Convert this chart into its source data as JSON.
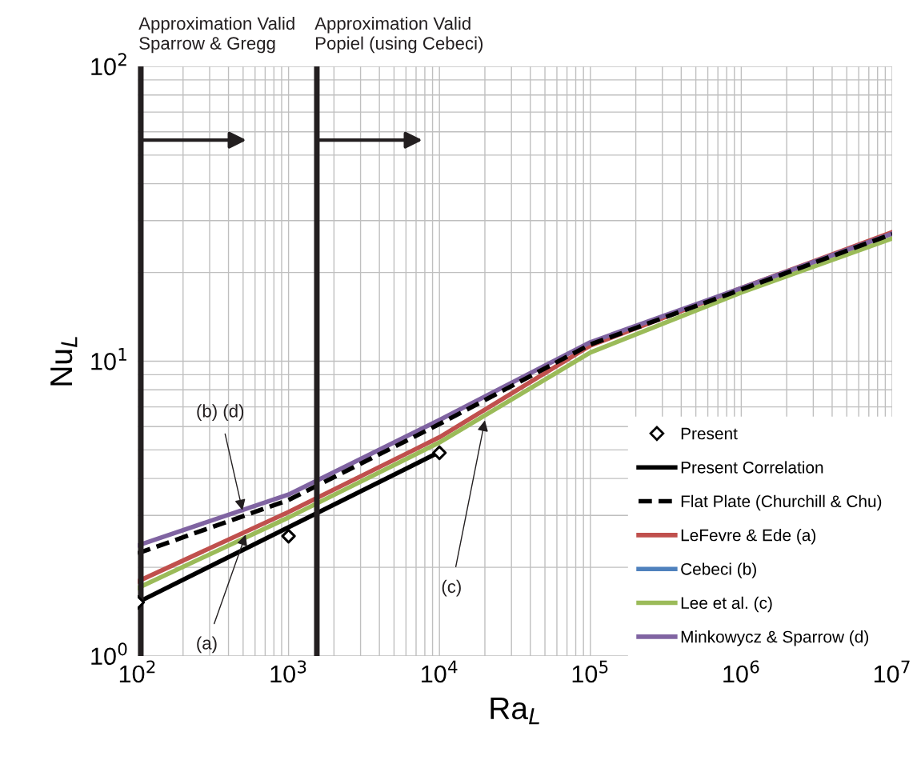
{
  "chart_data": {
    "type": "line",
    "xlabel": "Ra$_{L}$",
    "ylabel": "Nu$_{L}$",
    "log": "xy",
    "xlim": [
      100,
      10000000
    ],
    "ylim": [
      1,
      100
    ],
    "xticks": [
      {
        "value": 100,
        "label": "10$^{2}$"
      },
      {
        "value": 1000,
        "label": "10$^{3}$"
      },
      {
        "value": 10000,
        "label": "10$^{4}$"
      },
      {
        "value": 100000,
        "label": "10$^{5}$"
      },
      {
        "value": 1000000,
        "label": "10$^{6}$"
      },
      {
        "value": 10000000,
        "label": "10$^{7}$"
      }
    ],
    "yticks": [
      {
        "value": 1,
        "label": "10$^{0}$"
      },
      {
        "value": 10,
        "label": "10$^{1}$"
      },
      {
        "value": 100,
        "label": "10$^{2}$"
      }
    ],
    "grid": true,
    "legend": "bottom right",
    "x": [
      100,
      1000,
      10000,
      100000,
      1000000,
      10000000
    ],
    "series": [
      {
        "name": "Present",
        "type": "scatter",
        "marker": "diamond",
        "color": "#000000",
        "x": [
          100,
          1000,
          10000
        ],
        "values": [
          1.52,
          2.55,
          4.89
        ]
      },
      {
        "name": "Present Correlation",
        "color": "#000000",
        "line_style": "solid",
        "x": [
          100,
          10000
        ],
        "values": [
          1.52,
          4.92
        ]
      },
      {
        "name": "Flat Plate (Churchill & Chu)",
        "color": "#000000",
        "line_style": "dashed",
        "values": [
          2.23,
          3.38,
          6.12,
          11.4,
          17.5,
          27.0
        ]
      },
      {
        "name": "LeFevre & Ede (a)",
        "color": "#c0504d",
        "line_style": "solid",
        "values": [
          1.79,
          3.08,
          5.52,
          11.3,
          17.7,
          27.4
        ]
      },
      {
        "name": "Cebeci (b)",
        "color": "#4f81bd",
        "line_style": "solid",
        "values": [
          null,
          null,
          null,
          null,
          null,
          null
        ]
      },
      {
        "name": "Lee et al. (c)",
        "color": "#9bbb59",
        "line_style": "solid",
        "values": [
          1.7,
          2.95,
          5.3,
          10.7,
          17.1,
          26.1
        ]
      },
      {
        "name": "Minkowycz & Sparrow (d)",
        "color": "#8064a2",
        "line_style": "solid",
        "values": [
          2.37,
          3.53,
          6.32,
          11.6,
          17.7,
          27.1
        ]
      }
    ],
    "ref_lines": [
      {
        "axis": "x",
        "value": 105,
        "label": "Approximation Valid\nSparrow & Gregg",
        "color": "#231f20"
      },
      {
        "axis": "x",
        "value": 1540,
        "label": "Approximation Valid\nPopiel (using Cebeci)",
        "color": "#231f20"
      }
    ],
    "annotations": [
      {
        "text": "(b) (d)",
        "x": 495,
        "y": 3.12
      },
      {
        "text": "(a)",
        "x": 520,
        "y": 2.58
      },
      {
        "text": "(c)",
        "x": 20000,
        "y": 6.3
      }
    ]
  }
}
